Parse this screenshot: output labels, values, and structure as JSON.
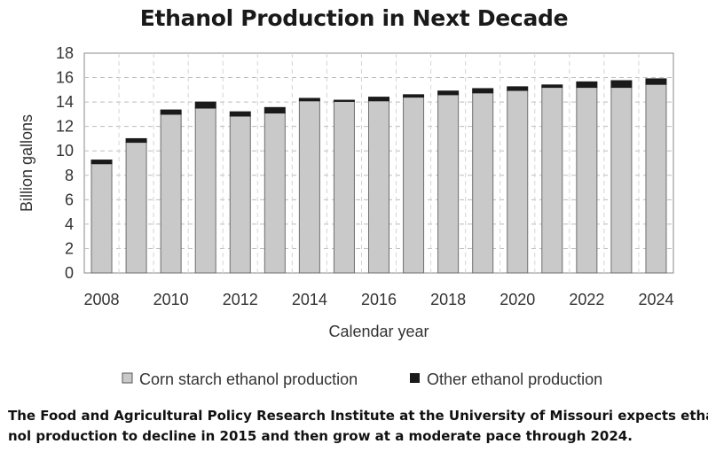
{
  "chart_data": {
    "type": "bar",
    "stacked": true,
    "title": "Ethanol Production in Next Decade",
    "xlabel": "Calendar year",
    "ylabel": "Billion gallons",
    "ylim": [
      0,
      18
    ],
    "yticks": [
      "0",
      "2",
      "4",
      "6",
      "8",
      "10",
      "12",
      "14",
      "16",
      "18"
    ],
    "categories": [
      2008,
      2009,
      2010,
      2011,
      2012,
      2013,
      2014,
      2015,
      2016,
      2017,
      2018,
      2019,
      2020,
      2021,
      2022,
      2023,
      2024
    ],
    "xtick_labels": [
      "2008",
      "2010",
      "2012",
      "2014",
      "2016",
      "2018",
      "2020",
      "2022",
      "2024"
    ],
    "grid": true,
    "legend_position": "bottom",
    "series": [
      {
        "name": "Corn starch ethanol production",
        "color": "#c9c9c9",
        "values": [
          8.95,
          10.7,
          13.0,
          13.5,
          12.85,
          13.1,
          14.1,
          14.05,
          14.1,
          14.4,
          14.6,
          14.75,
          14.95,
          15.2,
          15.2,
          15.2,
          15.45
        ]
      },
      {
        "name": "Other ethanol production",
        "color": "#1a1a1a",
        "values": [
          0.3,
          0.3,
          0.35,
          0.5,
          0.35,
          0.45,
          0.2,
          0.1,
          0.3,
          0.2,
          0.3,
          0.35,
          0.3,
          0.2,
          0.45,
          0.55,
          0.45
        ]
      }
    ]
  },
  "caption": {
    "line1": "The Food and Agricultural Policy Research Institute at the University of Missouri expects etha-",
    "line2": "nol production to decline in 2015 and then grow at a moderate pace through 2024."
  }
}
